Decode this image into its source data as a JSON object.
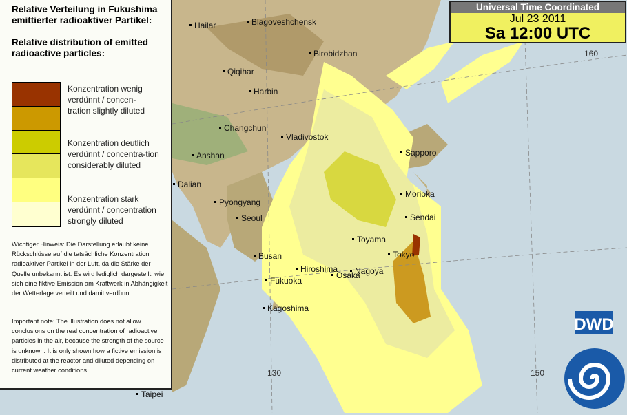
{
  "legend": {
    "title_de": "Relative Verteilung in Fukushima emittierter radioaktiver Partikel:",
    "title_en": "Relative distribution of emitted radioactive particles:",
    "colors": [
      "#993300",
      "#cc9900",
      "#cccc00",
      "#e6e65c",
      "#ffff80",
      "#ffffd0"
    ],
    "labels": [
      "Konzentration wenig verdünnt / concen-tration slightly diluted",
      "Konzentration deutlich verdünnt / concentra-tion considerably diluted",
      "Konzentration stark verdünnt / concentration strongly diluted"
    ],
    "note_de": "Wichtiger Hinweis: Die Darstellung erlaubt keine Rückschlüsse auf die tatsächliche Konzentration radioaktiver Partikel in der Luft, da die Stärke der Quelle unbekannt ist. Es wird lediglich dargestellt, wie sich eine fiktive Emission am Kraftwerk in Abhängigkeit der Wetterlage verteilt und damit verdünnt.",
    "note_en": "Important note: The illustration does not allow conclusions on the real concentration of radioactive particles in the air, because the strength of the source is unknown. It is only shown how a fictive emission is distributed at the reactor and diluted depending on current weather conditions."
  },
  "time": {
    "header": "Universal Time Coordinated",
    "date": "Jul 23 2011",
    "time": "Sa 12:00 UTC"
  },
  "cities": [
    "Hailar",
    "Blagoveshchensk",
    "Birobidzhan",
    "Qiqihar",
    "Harbin",
    "Changchun",
    "Vladivostok",
    "Anshan",
    "Dalian",
    "Pyongyang",
    "Seoul",
    "Sapporo",
    "Morioka",
    "Sendai",
    "Toyama",
    "Tokyo",
    "Busan",
    "Hiroshima",
    "Osaka",
    "Nagoya",
    "Fukuoka",
    "Kagoshima",
    "Taipei"
  ],
  "grid_labels": [
    "160",
    "130",
    "150"
  ],
  "logo": "DWD"
}
